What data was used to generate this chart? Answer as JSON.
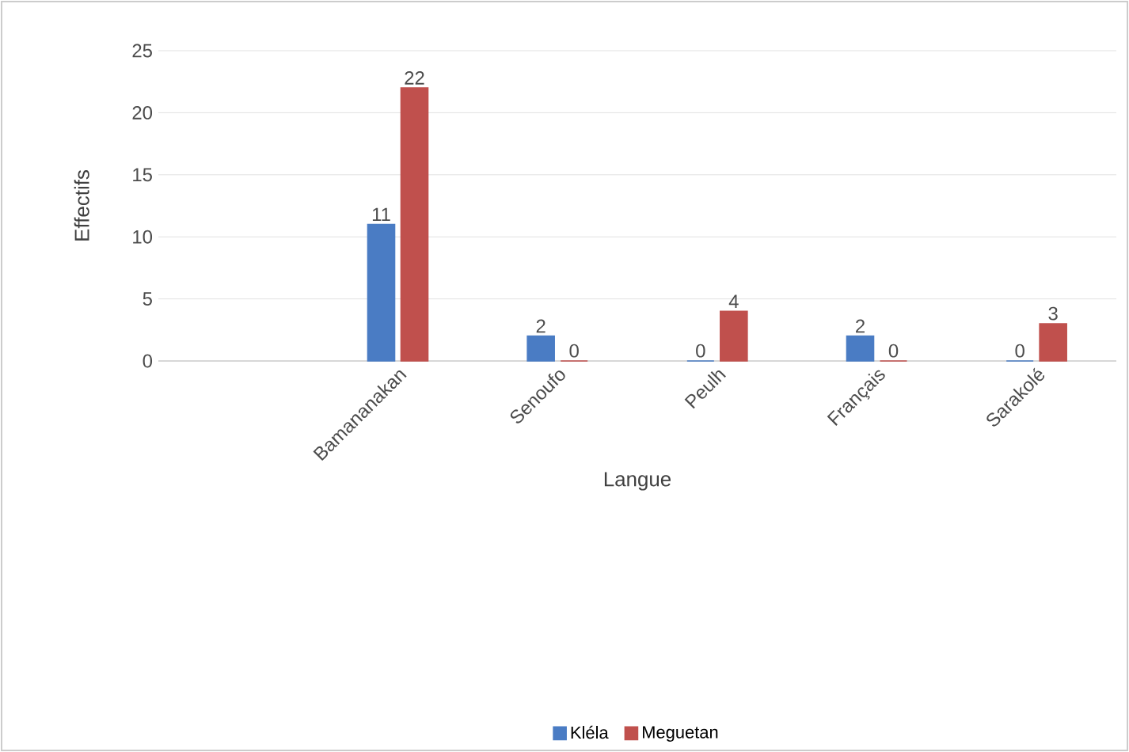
{
  "chart_data": {
    "type": "bar",
    "xlabel": "Langue",
    "ylabel": "Effectifs",
    "categories": [
      null,
      "Bamananakan",
      "Senoufo",
      "Peulh",
      "Français",
      "Sarakolé"
    ],
    "series": [
      {
        "name": "Kléla",
        "color": "#4a7cc4",
        "values": [
          null,
          11,
          2,
          0,
          2,
          0
        ]
      },
      {
        "name": "Meguetan",
        "color": "#c0504d",
        "values": [
          null,
          22,
          0,
          4,
          0,
          3
        ]
      }
    ],
    "ylim": [
      0,
      25
    ],
    "yticks": [
      0,
      5,
      10,
      15,
      20,
      25
    ],
    "grid": "y",
    "legend": "bottom",
    "data_labels": true
  }
}
